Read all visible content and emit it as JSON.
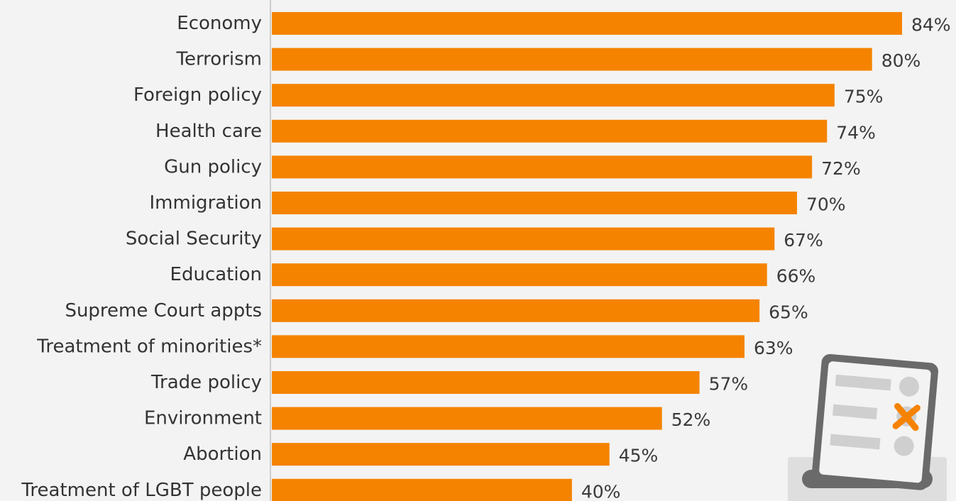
{
  "chart_data": {
    "type": "bar",
    "orientation": "horizontal",
    "categories": [
      "Economy",
      "Terrorism",
      "Foreign policy",
      "Health care",
      "Gun policy",
      "Immigration",
      "Social Security",
      "Education",
      "Supreme Court appts",
      "Treatment of minorities*",
      "Trade policy",
      "Environment",
      "Abortion",
      "Treatment of LGBT people"
    ],
    "values": [
      84,
      80,
      75,
      74,
      72,
      70,
      67,
      66,
      65,
      63,
      57,
      52,
      45,
      40
    ],
    "value_labels": [
      "84%",
      "80%",
      "75%",
      "74%",
      "72%",
      "70%",
      "67%",
      "66%",
      "65%",
      "63%",
      "57%",
      "52%",
      "45%",
      "40%"
    ],
    "unit": "%",
    "xlim": [
      0,
      100
    ],
    "grid": false,
    "colors": {
      "bar": "#f58300",
      "background": "#f3f3f3",
      "axis": "#cccccc",
      "category_text": "#333333",
      "value_text": "#3a3a3a"
    }
  },
  "decoration": {
    "icon": "ballot-box-icon"
  }
}
